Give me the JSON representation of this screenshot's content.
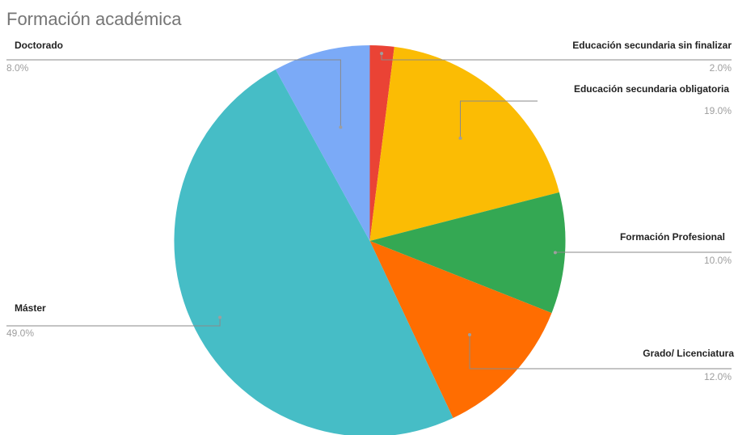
{
  "chart_data": {
    "type": "pie",
    "title": "Formación académica",
    "slices": [
      {
        "label": "Educación secundaria sin finalizar",
        "value": 2.0,
        "pct_label": "2.0%",
        "color": "#EA4335"
      },
      {
        "label": "Educación secundaria obligatoria",
        "value": 19.0,
        "pct_label": "19.0%",
        "color": "#FBBC04"
      },
      {
        "label": "Formación Profesional",
        "value": 10.0,
        "pct_label": "10.0%",
        "color": "#34A853"
      },
      {
        "label": "Grado/ Licenciatura",
        "value": 12.0,
        "pct_label": "12.0%",
        "color": "#FF6D01"
      },
      {
        "label": "Máster",
        "value": 49.0,
        "pct_label": "49.0%",
        "color": "#46BDC6"
      },
      {
        "label": "Doctorado",
        "value": 8.0,
        "pct_label": "8.0%",
        "color": "#7BAAF7"
      }
    ],
    "start": "top",
    "direction": "clockwise",
    "legend": "none"
  }
}
